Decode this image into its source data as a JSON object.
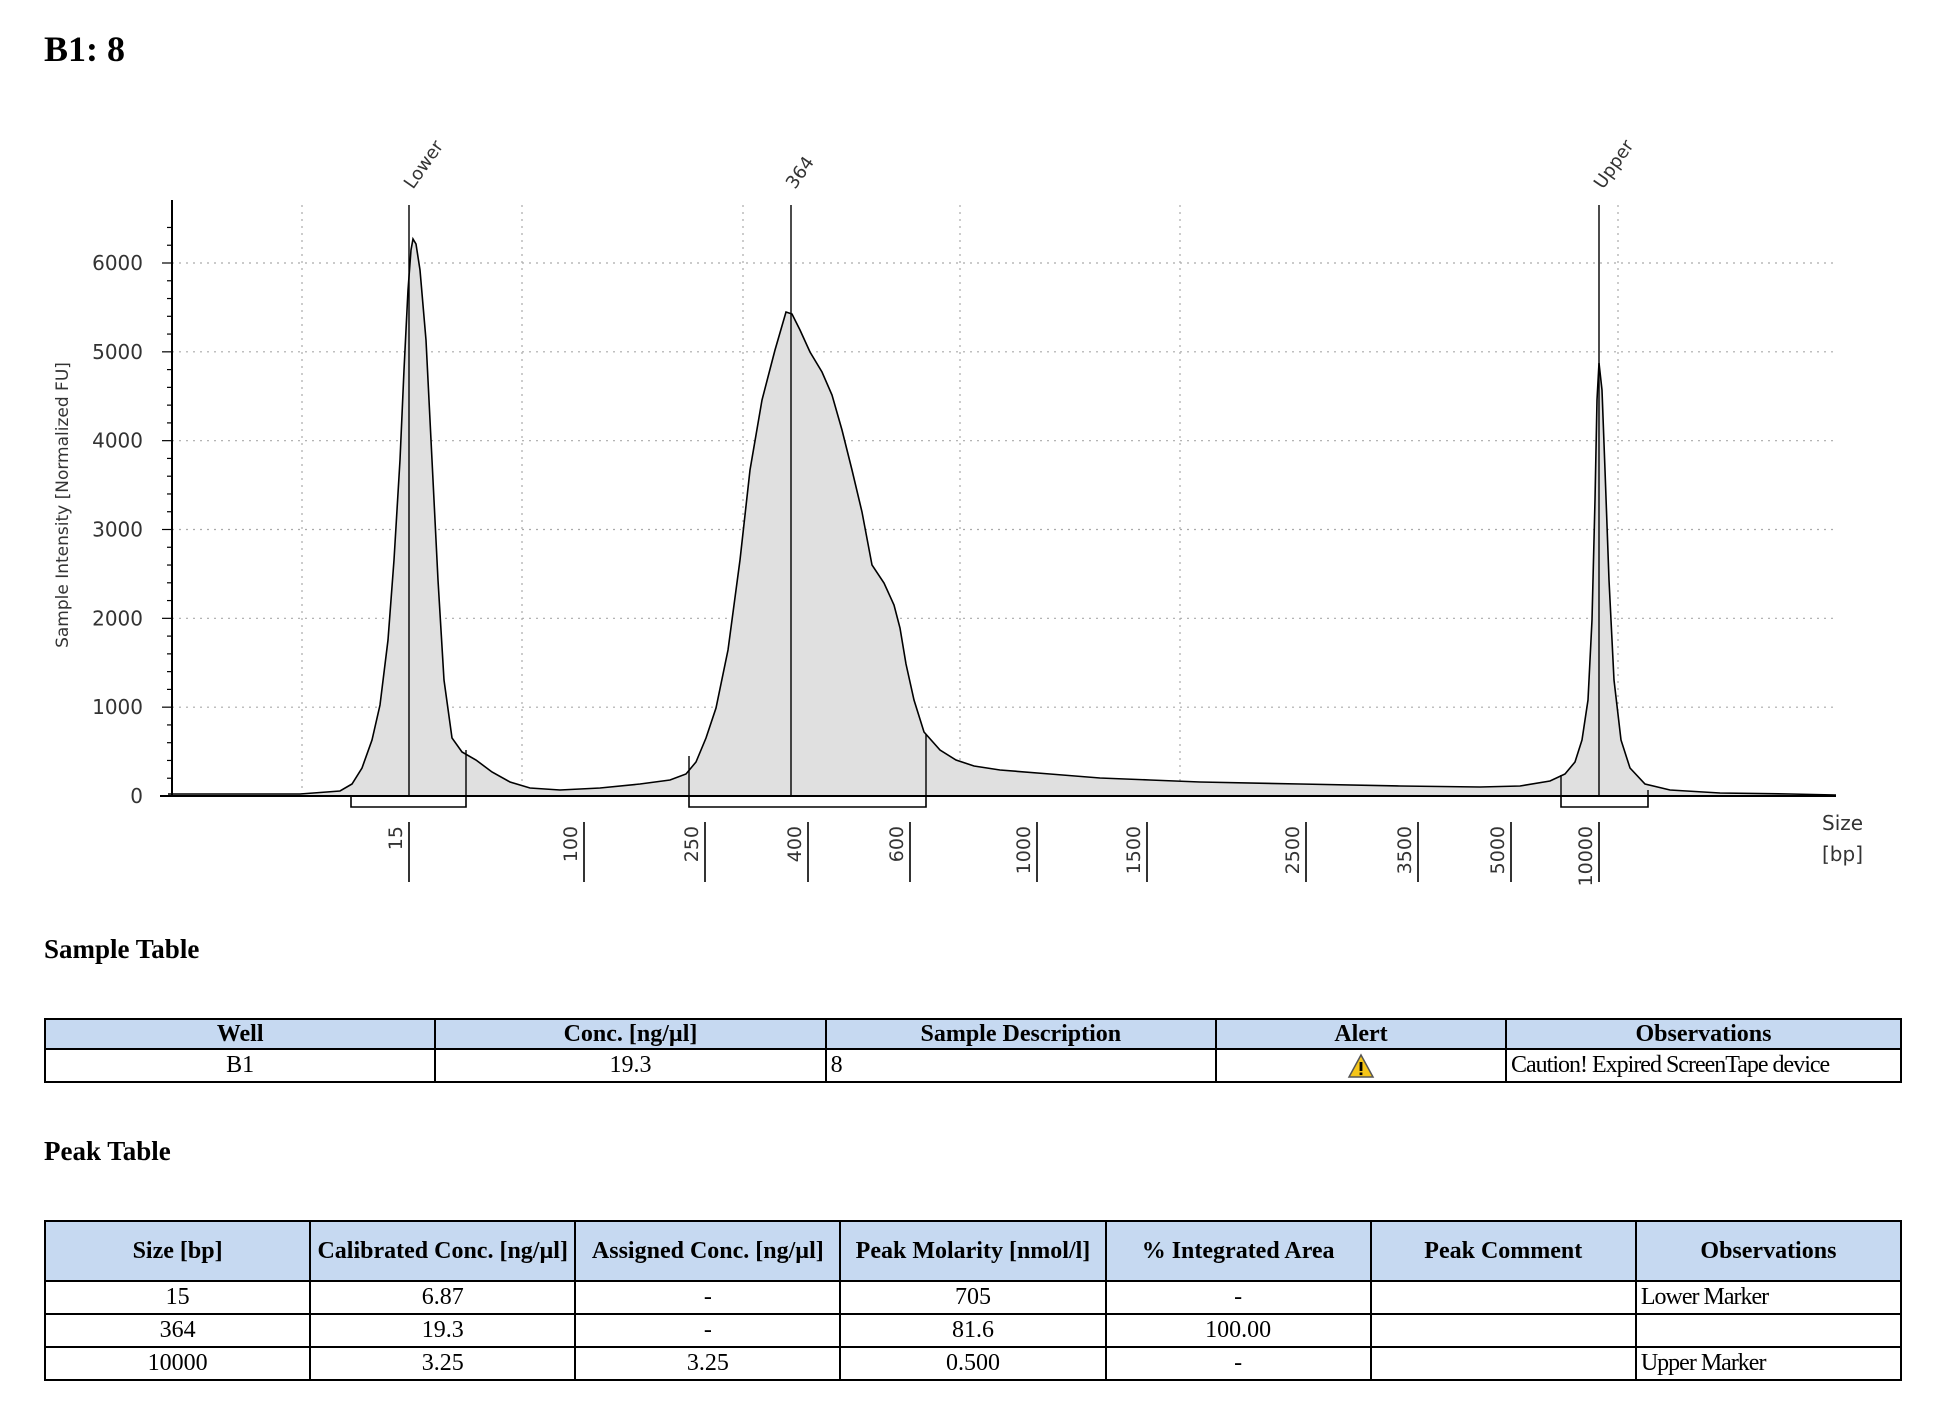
{
  "page": {
    "title": "B1: 8"
  },
  "chart_data": {
    "type": "area",
    "ylabel": "Sample Intensity [Normalized FU]",
    "xlabel": "Size\n[bp]",
    "xlabel_lines": [
      "Size",
      "[bp]"
    ],
    "ylim": [
      0,
      6600
    ],
    "yticks": [
      0,
      1000,
      2000,
      3000,
      4000,
      5000,
      6000
    ],
    "xticks": [
      "15",
      "100",
      "250",
      "400",
      "600",
      "1000",
      "1500",
      "2500",
      "3500",
      "5000",
      "10000"
    ],
    "grid": true,
    "peak_labels": [
      "Lower",
      "364",
      "Upper"
    ],
    "fill_color": "#e0e0e0",
    "line_color": "#000000"
  },
  "sample_table": {
    "heading": "Sample Table",
    "columns": [
      "Well",
      "Conc. [ng/µl]",
      "Sample Description",
      "Alert",
      "Observations"
    ],
    "rows": [
      {
        "well": "B1",
        "conc": "19.3",
        "description": "8",
        "alert_icon": "warning-triangle-icon",
        "observations": "Caution! Expired ScreenTape device"
      }
    ]
  },
  "peak_table": {
    "heading": "Peak Table",
    "columns": [
      "Size [bp]",
      "Calibrated Conc. [ng/µl]",
      "Assigned Conc. [ng/µl]",
      "Peak Molarity [nmol/l]",
      "% Integrated Area",
      "Peak Comment",
      "Observations"
    ],
    "rows": [
      [
        "15",
        "6.87",
        "-",
        "705",
        "-",
        "",
        "Lower Marker"
      ],
      [
        "364",
        "19.3",
        "-",
        "81.6",
        "100.00",
        "",
        ""
      ],
      [
        "10000",
        "3.25",
        "3.25",
        "0.500",
        "-",
        "",
        "Upper Marker"
      ]
    ]
  }
}
